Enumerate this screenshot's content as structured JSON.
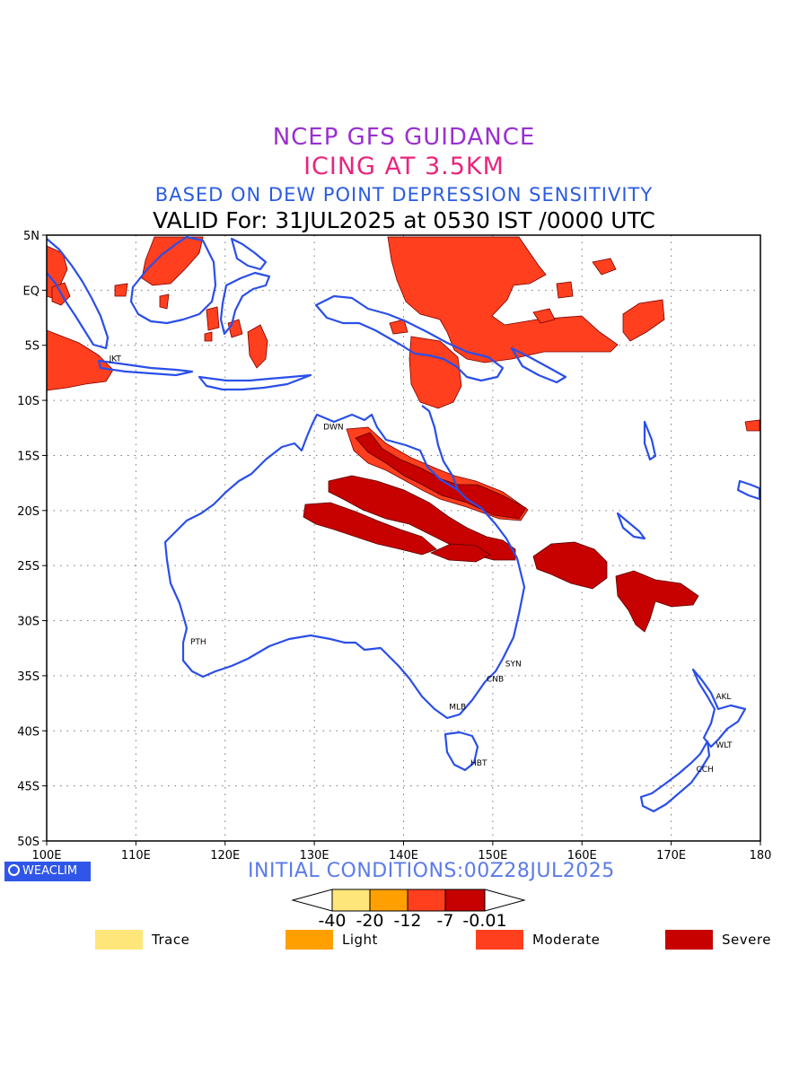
{
  "header": {
    "line1": "NCEP GFS GUIDANCE",
    "line2": "ICING AT 3.5KM",
    "line3": "BASED ON DEW POINT DEPRESSION SENSITIVITY",
    "line4": "VALID For: 31JUL2025 at 0530 IST /0000 UTC"
  },
  "map": {
    "lon_range": [
      100,
      180
    ],
    "lat_range": [
      -50,
      5
    ],
    "lon_ticks": [
      "100E",
      "110E",
      "120E",
      "130E",
      "140E",
      "150E",
      "160E",
      "170E",
      "180"
    ],
    "lat_ticks": [
      "5N",
      "EQ",
      "5S",
      "10S",
      "15S",
      "20S",
      "25S",
      "30S",
      "35S",
      "40S",
      "45S",
      "50S"
    ],
    "grid": "dotted",
    "stations": [
      {
        "code": "JKT",
        "lon": 106.8,
        "lat": -6.2
      },
      {
        "code": "DWN",
        "lon": 130.8,
        "lat": -12.4
      },
      {
        "code": "PTH",
        "lon": 115.9,
        "lat": -31.9
      },
      {
        "code": "SYN",
        "lon": 151.2,
        "lat": -33.9
      },
      {
        "code": "CNB",
        "lon": 149.1,
        "lat": -35.3
      },
      {
        "code": "MLB",
        "lon": 144.9,
        "lat": -37.8
      },
      {
        "code": "HBT",
        "lon": 147.3,
        "lat": -42.9
      },
      {
        "code": "AKL",
        "lon": 174.8,
        "lat": -36.9
      },
      {
        "code": "WLT",
        "lon": 174.8,
        "lat": -41.3
      },
      {
        "code": "CCH",
        "lon": 172.6,
        "lat": -43.5
      }
    ]
  },
  "footer": {
    "logo_text": "WEACLIM",
    "init_conditions": "INITIAL CONDITIONS:00Z28JUL2025"
  },
  "colorbar": {
    "labels": [
      "-40",
      "-20",
      "-12",
      "-7",
      "-0.01"
    ],
    "colors": [
      "#ffe67a",
      "#ffa000",
      "#ff3f1e",
      "#c70000"
    ]
  },
  "legend": [
    {
      "label": "Trace",
      "color": "#ffe67a"
    },
    {
      "label": "Light",
      "color": "#ffa000"
    },
    {
      "label": "Moderate",
      "color": "#ff3f1e"
    },
    {
      "label": "Severe",
      "color": "#c70000"
    }
  ],
  "colors": {
    "coast": "#2a4fe8",
    "moderate": "#ff3f1e",
    "severe": "#c70000"
  }
}
